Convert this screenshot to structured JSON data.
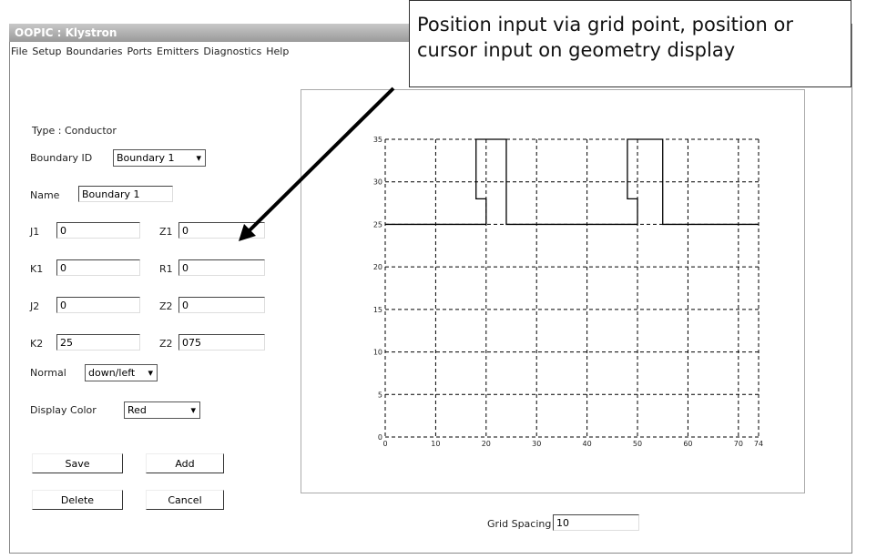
{
  "window": {
    "title": "OOPIC : Klystron"
  },
  "menu": [
    "File",
    "Setup",
    "Boundaries",
    "Ports",
    "Emitters",
    "Diagnostics",
    "Help"
  ],
  "callout": [
    "Position input via grid point, position or",
    "cursor input on geometry display"
  ],
  "form": {
    "type": "Type : Conductor",
    "boundary_id": {
      "label": "Boundary ID",
      "value": "Boundary 1"
    },
    "name": {
      "label": "Name",
      "value": "Boundary 1"
    },
    "fields": [
      {
        "label": "J1",
        "value": "0"
      },
      {
        "label": "Z1",
        "value": "0"
      },
      {
        "label": "K1",
        "value": "0"
      },
      {
        "label": "R1",
        "value": "0"
      },
      {
        "label": "J2",
        "value": "0"
      },
      {
        "label": "Z2",
        "value": "0"
      },
      {
        "label": "K2",
        "value": "25"
      },
      {
        "label": "Z2",
        "value": "075"
      }
    ],
    "normal": {
      "label": "Normal",
      "value": "down/left"
    },
    "display_color": {
      "label": "Display Color",
      "value": "Red"
    }
  },
  "buttons": [
    "Save",
    "Add",
    "Delete",
    "Cancel"
  ],
  "grid_spacing": {
    "label": "Grid Spacing",
    "value": "10"
  },
  "geometry": {
    "xlim": [
      0,
      74
    ],
    "ylim": [
      0,
      35
    ],
    "xticks": [
      0,
      10,
      20,
      30,
      40,
      50,
      60,
      70,
      74
    ],
    "yticks": [
      0,
      5,
      10,
      15,
      20,
      25,
      30,
      35
    ],
    "boundary": {
      "x": [
        0,
        20,
        20,
        18,
        18,
        24,
        24,
        50,
        50,
        48,
        48,
        55,
        55,
        74
      ],
      "y": [
        25,
        25,
        28,
        28,
        35,
        35,
        25,
        25,
        28,
        28,
        35,
        35,
        25,
        25
      ]
    }
  }
}
